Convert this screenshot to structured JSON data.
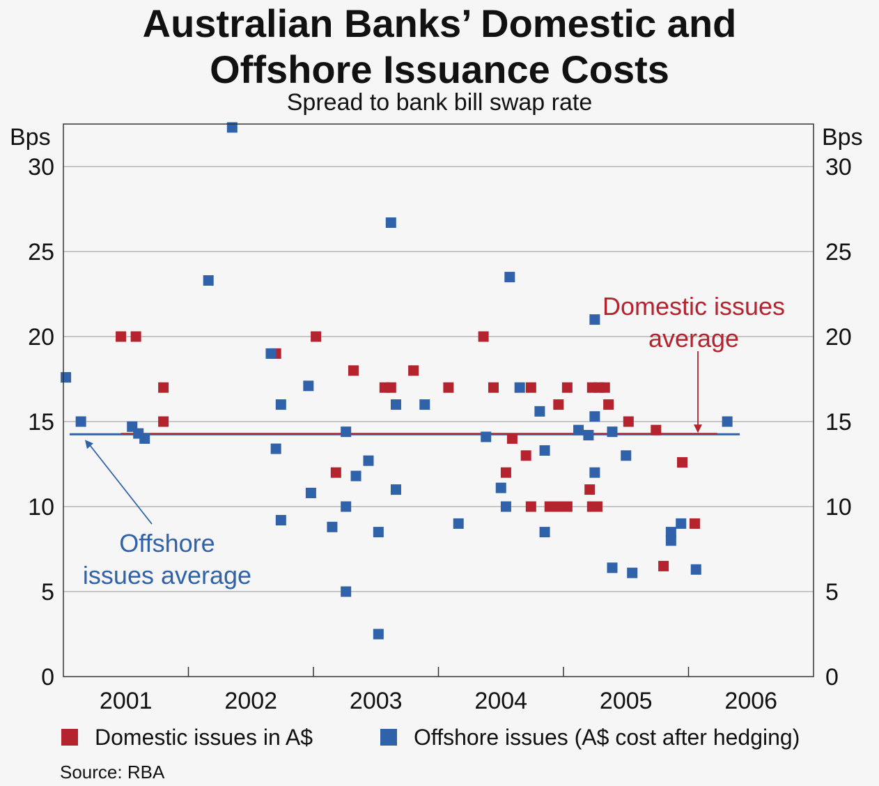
{
  "header": {
    "title_line1": "Australian Banks’ Domestic and",
    "title_line2": "Offshore Issuance Costs",
    "subtitle": "Spread to bank bill swap rate"
  },
  "colors": {
    "domestic": "#b5232e",
    "offshore": "#2f62a8",
    "grid": "#b5b5b5"
  },
  "chart_data": {
    "type": "scatter",
    "y_unit_left": "Bps",
    "y_unit_right": "Bps",
    "ylim": [
      0,
      32.5
    ],
    "yticks": [
      0,
      5,
      10,
      15,
      20,
      25,
      30
    ],
    "ytick_labels": [
      "0",
      "5",
      "10",
      "15",
      "20",
      "25",
      "30"
    ],
    "xlim": [
      2000.5,
      2006.5
    ],
    "xticks": [
      2001,
      2002,
      2003,
      2004,
      2005,
      2006
    ],
    "xtick_labels": [
      "2001",
      "2002",
      "2003",
      "2004",
      "2005",
      "2006"
    ],
    "grid": true,
    "legend_position": "bottom",
    "series": [
      {
        "name": "Domestic issues in A$",
        "color": "#b5232e",
        "points": [
          [
            2000.96,
            20
          ],
          [
            2001.08,
            20
          ],
          [
            2001.3,
            17
          ],
          [
            2001.3,
            15
          ],
          [
            2002.2,
            19
          ],
          [
            2002.52,
            20
          ],
          [
            2002.68,
            12
          ],
          [
            2002.82,
            18
          ],
          [
            2003.07,
            17
          ],
          [
            2003.12,
            17
          ],
          [
            2003.3,
            18
          ],
          [
            2003.58,
            17
          ],
          [
            2003.86,
            20
          ],
          [
            2003.94,
            17
          ],
          [
            2004.04,
            12
          ],
          [
            2004.09,
            14
          ],
          [
            2004.2,
            13
          ],
          [
            2004.24,
            17
          ],
          [
            2004.24,
            10
          ],
          [
            2004.39,
            10
          ],
          [
            2004.45,
            10
          ],
          [
            2004.46,
            16
          ],
          [
            2004.53,
            10
          ],
          [
            2004.53,
            17
          ],
          [
            2004.71,
            11
          ],
          [
            2004.73,
            17
          ],
          [
            2004.73,
            10
          ],
          [
            2004.77,
            10
          ],
          [
            2004.78,
            17
          ],
          [
            2004.83,
            17
          ],
          [
            2004.86,
            16
          ],
          [
            2005.02,
            15
          ],
          [
            2005.24,
            14.5
          ],
          [
            2005.3,
            6.5
          ],
          [
            2005.45,
            12.6
          ],
          [
            2005.55,
            9
          ]
        ]
      },
      {
        "name": "Offshore issues (A$ cost after hedging)",
        "color": "#2f62a8",
        "points": [
          [
            2000.52,
            17.6
          ],
          [
            2000.64,
            15
          ],
          [
            2001.05,
            14.7
          ],
          [
            2001.1,
            14.3
          ],
          [
            2001.15,
            14
          ],
          [
            2001.66,
            23.3
          ],
          [
            2001.85,
            32.3
          ],
          [
            2002.16,
            19
          ],
          [
            2002.2,
            13.4
          ],
          [
            2002.24,
            16
          ],
          [
            2002.24,
            9.2
          ],
          [
            2002.46,
            17.1
          ],
          [
            2002.48,
            10.8
          ],
          [
            2002.65,
            8.8
          ],
          [
            2002.76,
            14.4
          ],
          [
            2002.76,
            10
          ],
          [
            2002.76,
            5
          ],
          [
            2002.84,
            11.8
          ],
          [
            2002.94,
            12.7
          ],
          [
            2003.02,
            8.5
          ],
          [
            2003.02,
            2.5
          ],
          [
            2003.12,
            26.7
          ],
          [
            2003.16,
            16
          ],
          [
            2003.16,
            11
          ],
          [
            2003.39,
            16
          ],
          [
            2003.66,
            9
          ],
          [
            2003.88,
            14.1
          ],
          [
            2004.0,
            11.1
          ],
          [
            2004.04,
            10
          ],
          [
            2004.07,
            23.5
          ],
          [
            2004.15,
            17
          ],
          [
            2004.31,
            15.6
          ],
          [
            2004.35,
            13.3
          ],
          [
            2004.35,
            8.5
          ],
          [
            2004.62,
            14.5
          ],
          [
            2004.7,
            14.2
          ],
          [
            2004.75,
            21
          ],
          [
            2004.75,
            15.3
          ],
          [
            2004.75,
            12
          ],
          [
            2004.89,
            14.4
          ],
          [
            2004.89,
            6.4
          ],
          [
            2005.0,
            13
          ],
          [
            2005.05,
            6.1
          ],
          [
            2005.36,
            8.5
          ],
          [
            2005.36,
            8
          ],
          [
            2005.44,
            9
          ],
          [
            2005.56,
            6.3
          ],
          [
            2005.81,
            15
          ]
        ]
      }
    ],
    "average_lines": [
      {
        "name": "Domestic issues average",
        "color": "#b5232e",
        "y": 14.25,
        "x_start": 2000.96,
        "x_end": 2005.73
      },
      {
        "name": "Offshore issues average",
        "color": "#2f62a8",
        "y": 14.25,
        "x_start": 2000.55,
        "x_end": 2005.91
      }
    ],
    "annotations": [
      {
        "text_lines": [
          "Domestic issues",
          "average"
        ],
        "color": "#b5232e"
      },
      {
        "text_lines": [
          "Offshore",
          "issues average"
        ],
        "color": "#2f62a8"
      }
    ]
  },
  "legend": [
    {
      "label": "Domestic issues in A$",
      "color": "#b5232e"
    },
    {
      "label": "Offshore issues (A$ cost after hedging)",
      "color": "#2f62a8"
    }
  ],
  "source": "Source: RBA"
}
